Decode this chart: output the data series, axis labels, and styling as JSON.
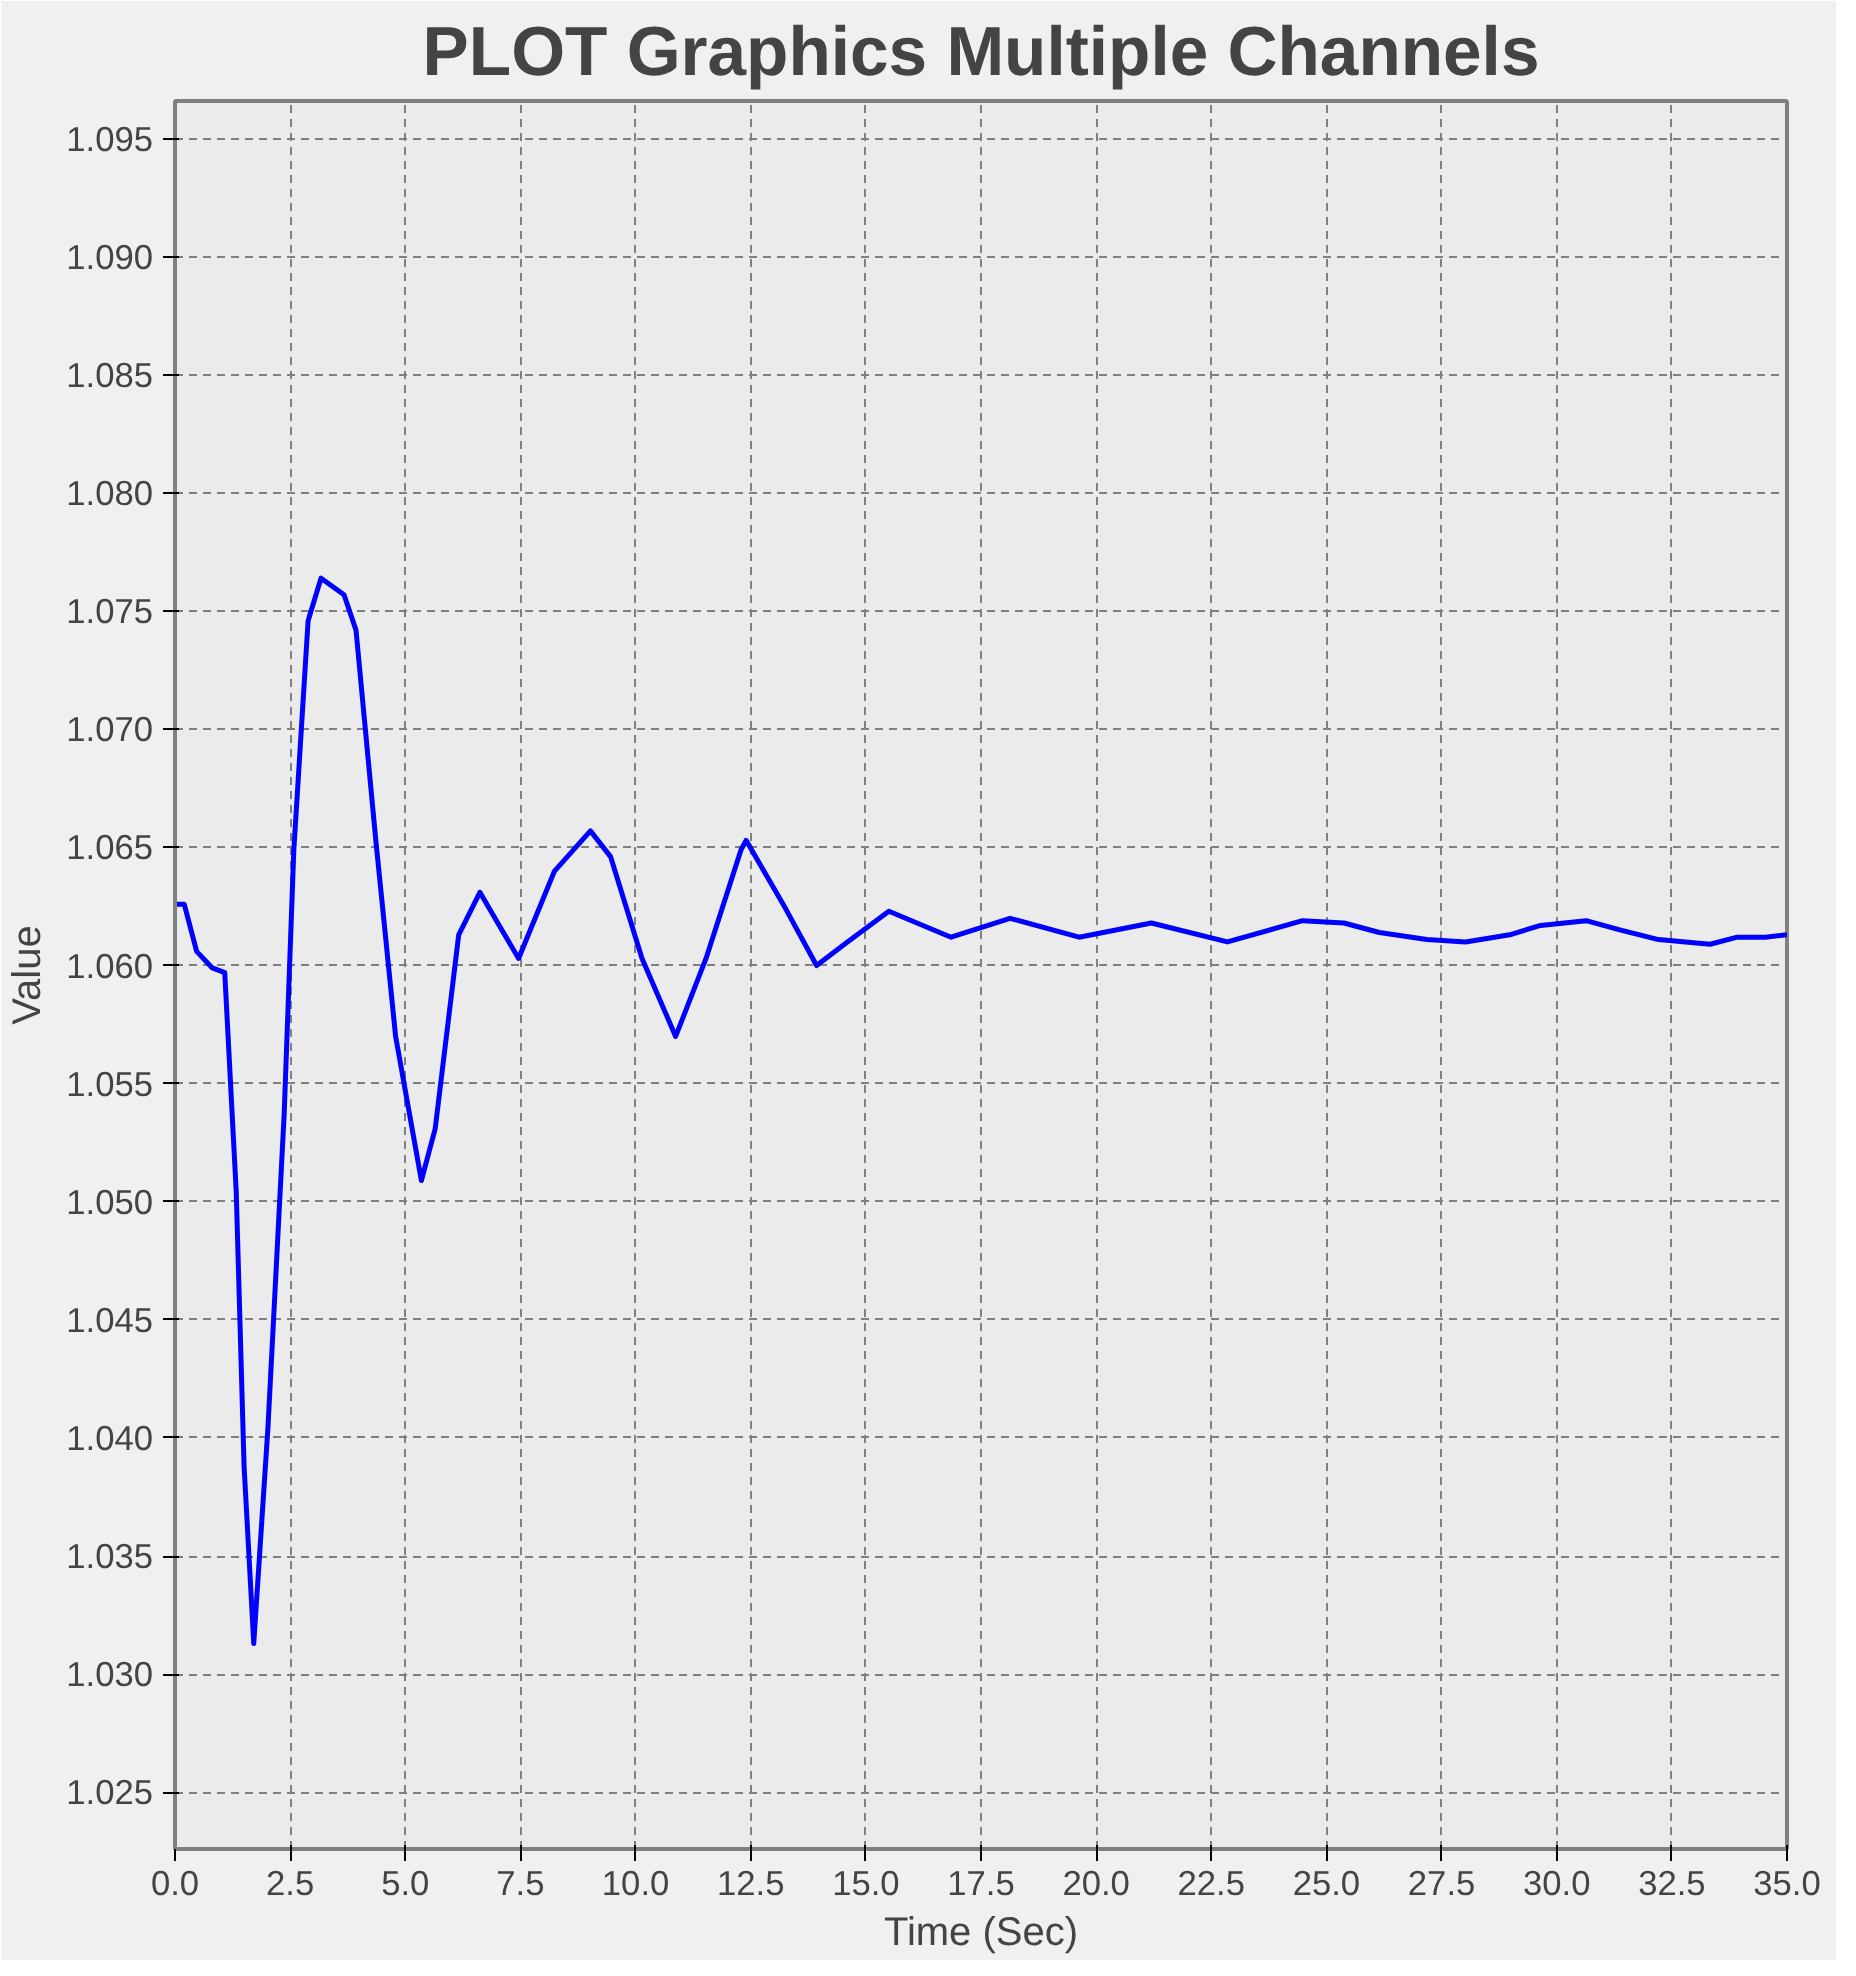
{
  "chart_data": {
    "type": "line",
    "title": "PLOT Graphics Multiple Channels",
    "xlabel": "Time (Sec)",
    "ylabel": "Value",
    "xlim": [
      0,
      35
    ],
    "ylim": [
      1.0226,
      1.0966
    ],
    "xticks": [
      {
        "value": 0,
        "label": "0.0"
      },
      {
        "value": 2.5,
        "label": "2.5"
      },
      {
        "value": 5,
        "label": "5.0"
      },
      {
        "value": 7.5,
        "label": "7.5"
      },
      {
        "value": 10,
        "label": "10.0"
      },
      {
        "value": 12.5,
        "label": "12.5"
      },
      {
        "value": 15,
        "label": "15.0"
      },
      {
        "value": 17.5,
        "label": "17.5"
      },
      {
        "value": 20,
        "label": "20.0"
      },
      {
        "value": 22.5,
        "label": "22.5"
      },
      {
        "value": 25,
        "label": "25.0"
      },
      {
        "value": 27.5,
        "label": "27.5"
      },
      {
        "value": 30,
        "label": "30.0"
      },
      {
        "value": 32.5,
        "label": "32.5"
      },
      {
        "value": 35,
        "label": "35.0"
      }
    ],
    "yticks": [
      1.025,
      {
        "value": 1.03,
        "label": "1.030"
      },
      1.035,
      {
        "value": 1.04,
        "label": "1.040"
      },
      1.045,
      {
        "value": 1.05,
        "label": "1.050"
      },
      1.055,
      {
        "value": 1.06,
        "label": "1.060"
      },
      1.065,
      {
        "value": 1.07,
        "label": "1.070"
      },
      1.075,
      {
        "value": 1.08,
        "label": "1.080"
      },
      1.085,
      {
        "value": 1.09,
        "label": "1.090"
      },
      1.095
    ],
    "grid": true,
    "line_style": "solid",
    "x": [
      0,
      0.2,
      0.47,
      0.81,
      1.08,
      1.33,
      1.5,
      1.71,
      2.02,
      2.37,
      2.58,
      2.89,
      3.17,
      3.67,
      3.93,
      4.36,
      4.79,
      5.35,
      5.65,
      6.16,
      6.62,
      7.04,
      7.46,
      8.24,
      9.02,
      9.46,
      10.14,
      10.87,
      11.53,
      12.29,
      12.4,
      13.26,
      13.93,
      14.6,
      15.5,
      16.85,
      18.13,
      19.63,
      21.2,
      22.85,
      24.48,
      25.38,
      26.15,
      27.18,
      28.02,
      28.98,
      29.65,
      30.64,
      31.39,
      32.21,
      33.33,
      33.92,
      34.53,
      35
    ],
    "series": [
      {
        "color": "#0000ff",
        "values": [
          1.0626,
          1.0626,
          1.0606,
          1.0599,
          1.0597,
          1.0504,
          1.0388,
          1.0313,
          1.0405,
          1.0537,
          1.0649,
          1.0746,
          1.0764,
          1.0757,
          1.0742,
          1.0653,
          1.057,
          1.0509,
          1.0531,
          1.0613,
          1.0631,
          1.0617,
          1.0603,
          1.064,
          1.0657,
          1.0646,
          1.0603,
          1.057,
          1.0603,
          1.0649,
          1.0653,
          1.0624,
          1.06,
          1.061,
          1.0623,
          1.0612,
          1.062,
          1.0612,
          1.0618,
          1.061,
          1.0619,
          1.0618,
          1.0614,
          1.0611,
          1.061,
          1.0613,
          1.0617,
          1.0619,
          1.0615,
          1.0611,
          1.0609,
          1.0612,
          1.0612,
          1.0613
        ]
      }
    ]
  }
}
